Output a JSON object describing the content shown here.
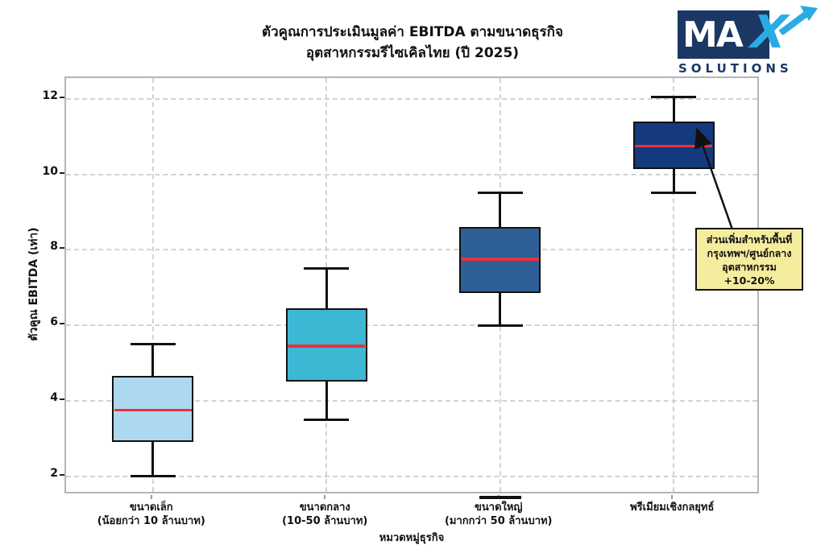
{
  "logo": {
    "text_main": "MA",
    "text_x": "X",
    "text_sub": "SOLUTIONS",
    "navy_color": "#1b3764",
    "light_blue_color": "#2aabe4"
  },
  "annotation": {
    "lines": [
      "ส่วนเพิ่มสำหรับพื้นที่",
      "กรุงเทพฯ/ศูนย์กลาง",
      "อุตสาหกรรม",
      "+10-20%"
    ],
    "bg_color": "#f5ed9e"
  },
  "chart_data": {
    "type": "boxplot",
    "title": "ตัวคูณการประเมินมูลค่า EBITDA ตามขนาดธุรกิจ",
    "subtitle": "อุตสาหกรรมรีไซเคิลไทย (ปี 2025)",
    "xlabel": "หมวดหมู่ธุรกิจ",
    "ylabel": "ตัวคูณ EBITDA (เท่า)",
    "ylim": [
      1.5,
      12.55
    ],
    "yticks": [
      2,
      4,
      6,
      8,
      10,
      12
    ],
    "grid": true,
    "legend": "none",
    "median_color": "#e8323c",
    "box_edge_color": "#111111",
    "boxes": [
      {
        "label": "ขนาดเล็ก",
        "sublabel": "(น้อยกว่า 10 ล้านบาท)",
        "min": 2.0,
        "q1": 2.9,
        "median": 3.75,
        "q3": 4.65,
        "max": 5.5,
        "fill": "#aed8f0",
        "overline": false
      },
      {
        "label": "ขนาดกลาง",
        "sublabel": "(10-50 ล้านบาท)",
        "min": 3.5,
        "q1": 4.5,
        "median": 5.45,
        "q3": 6.45,
        "max": 7.5,
        "fill": "#3db8d4",
        "overline": false
      },
      {
        "label": "ขนาดใหญ่",
        "sublabel": "(มากกว่า 50 ล้านบาท)",
        "min": 6.0,
        "q1": 6.85,
        "median": 7.75,
        "q3": 8.6,
        "max": 9.5,
        "fill": "#2e5f96",
        "overline": true
      },
      {
        "label": "พรีเมียมเชิงกลยุทธ์",
        "sublabel": "",
        "min": 9.5,
        "q1": 10.15,
        "median": 10.75,
        "q3": 11.4,
        "max": 12.05,
        "fill": "#15397d",
        "overline": false
      }
    ]
  }
}
